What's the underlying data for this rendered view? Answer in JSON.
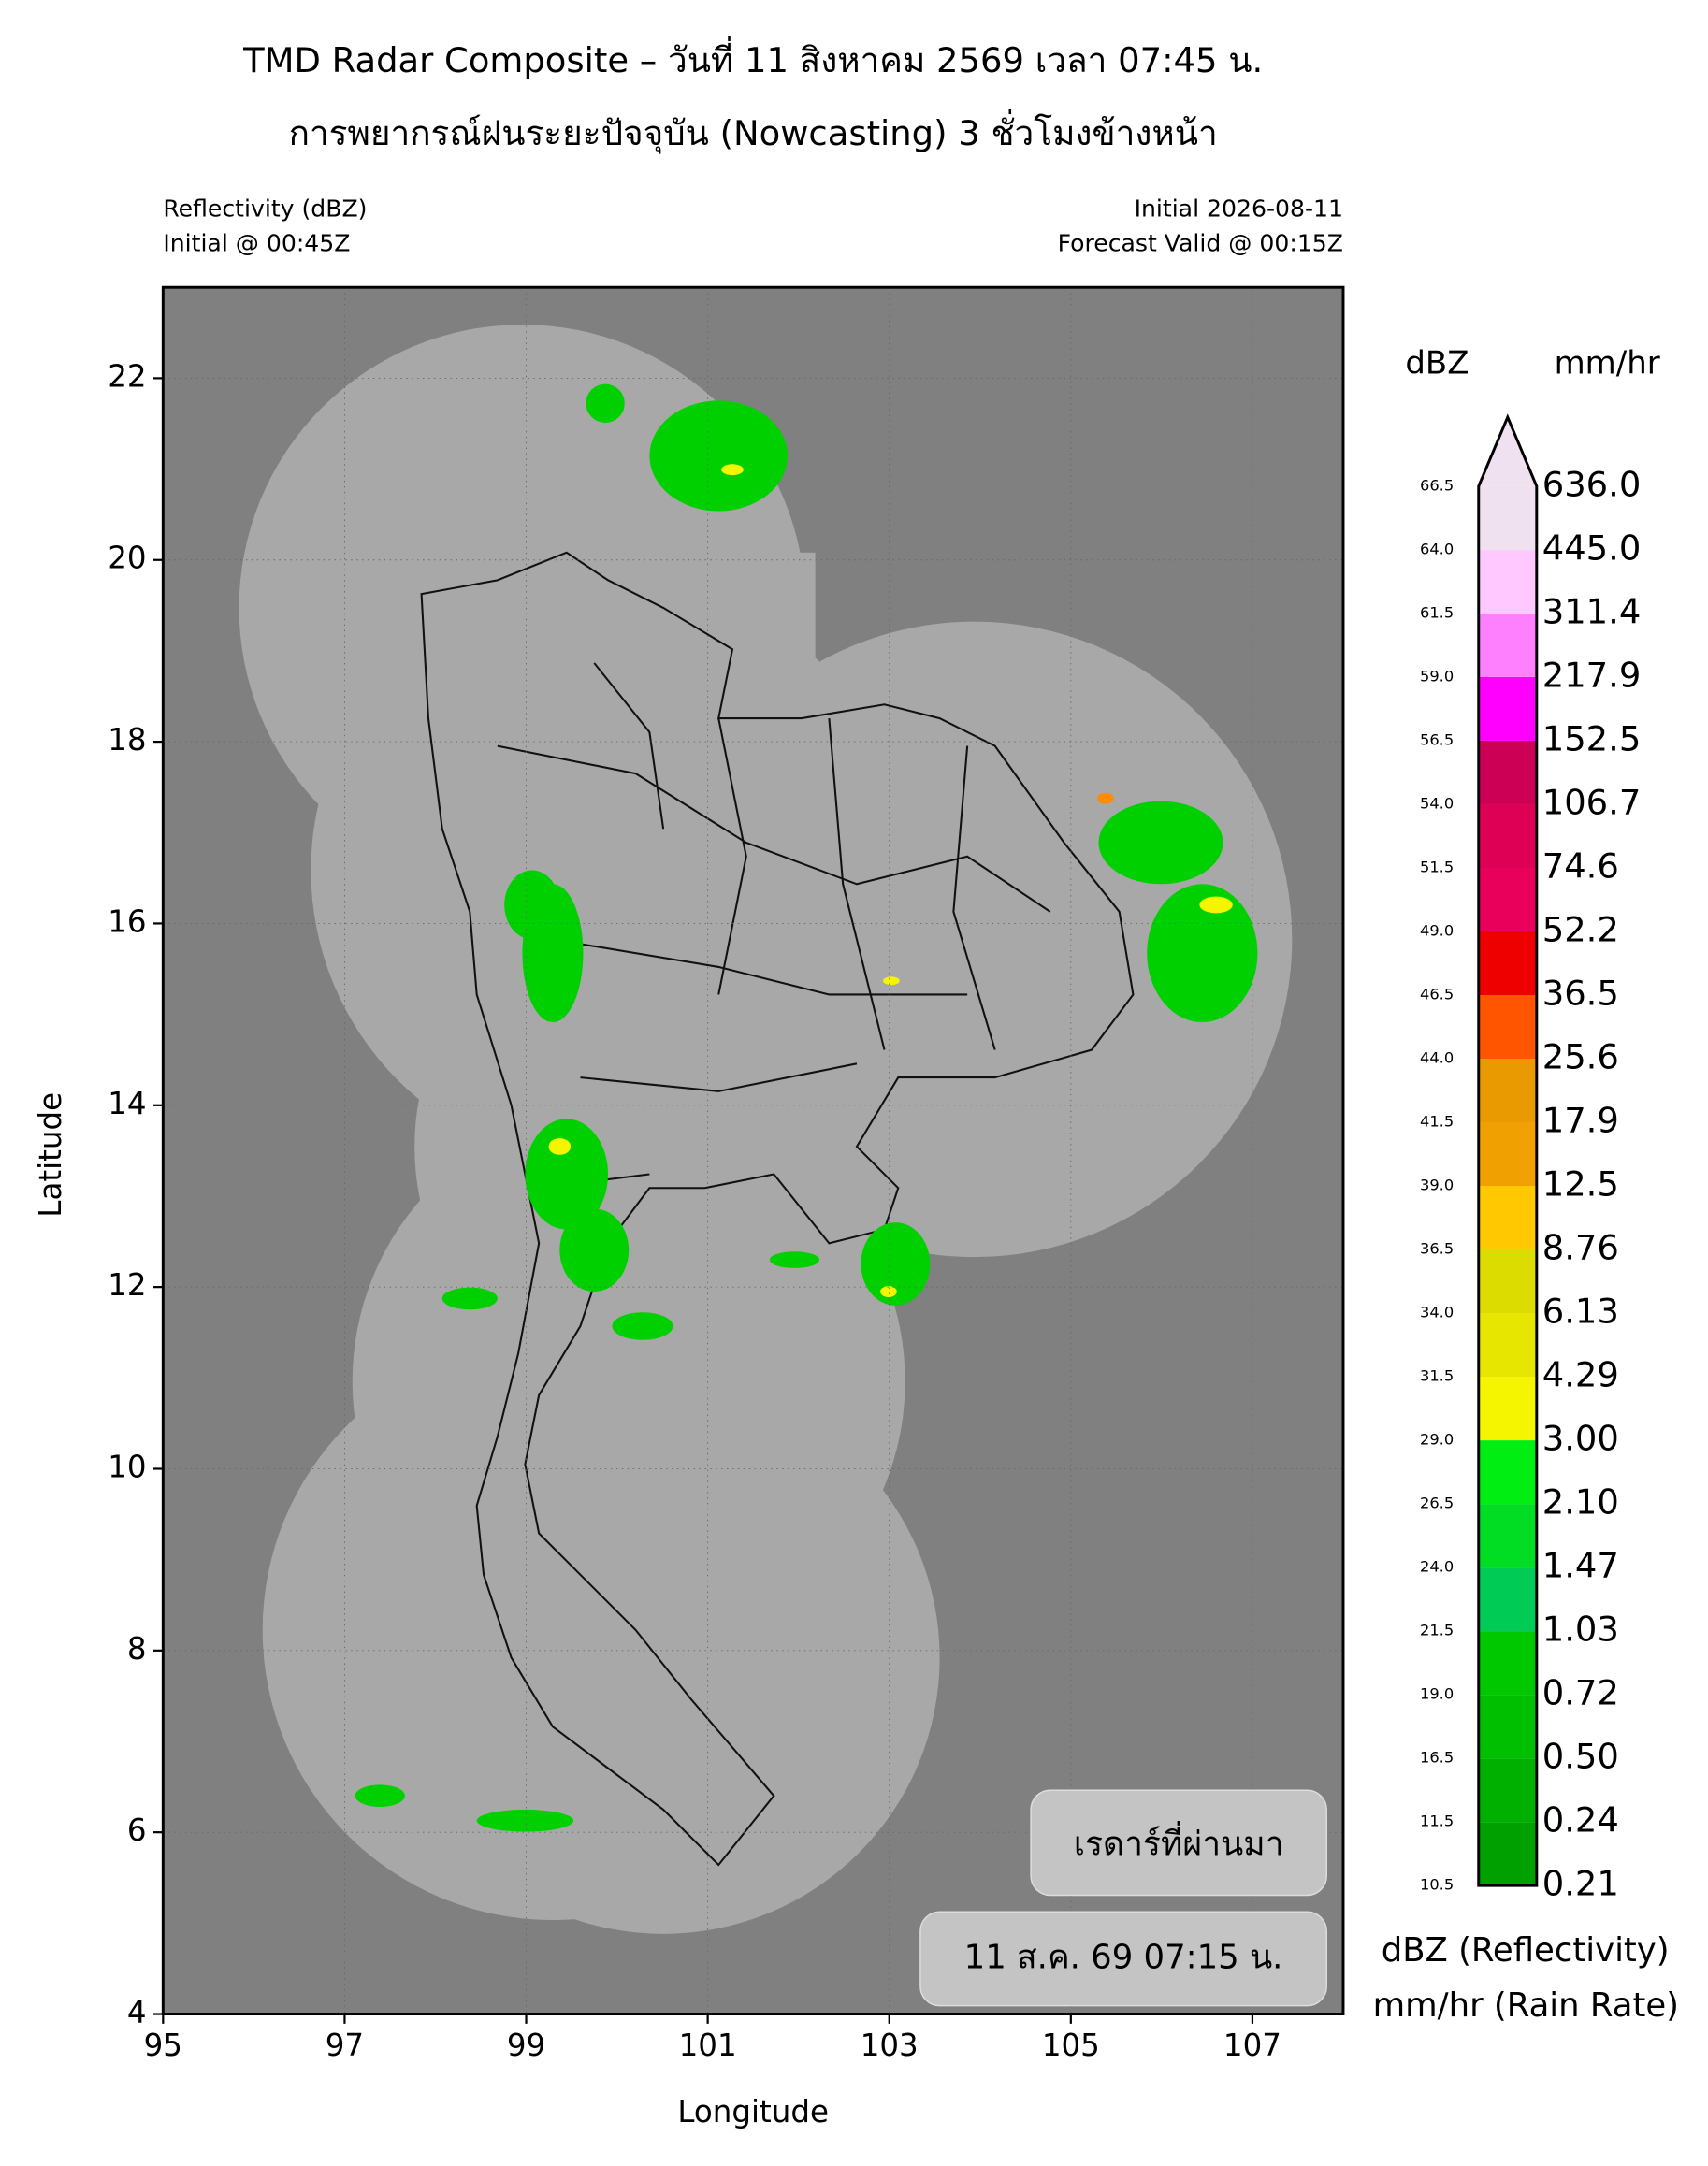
{
  "chart_data": {
    "type": "radar-map",
    "title": "TMD Radar Composite – วันที่ 11 สิงหาคม 2569 เวลา 07:45 น.",
    "subtitle": "การพยากรณ์ฝนระยะปัจจุบัน (Nowcasting) 3 ชั่วโมงข้างหน้า",
    "left_info": [
      "Reflectivity (dBZ)",
      "Initial @ 00:45Z"
    ],
    "right_info": [
      "Initial 2026-08-11",
      "Forecast Valid @ 00:15Z"
    ],
    "x_label": "Longitude",
    "y_label": "Latitude",
    "xlim": [
      95,
      108
    ],
    "ylim": [
      4,
      23
    ],
    "xticks": [
      95,
      97,
      99,
      101,
      103,
      105,
      107
    ],
    "yticks": [
      4,
      6,
      8,
      10,
      12,
      14,
      16,
      18,
      20,
      22
    ],
    "grid": true,
    "overlay_labels": [
      "เรดาร์ที่ผ่านมา",
      "11 ส.ค. 69 07:15 น."
    ],
    "colorbar": {
      "headers": [
        "dBZ",
        "mm/hr"
      ],
      "levels": [
        {
          "value": 10.5,
          "label": "10.5"
        },
        {
          "value": 11.5,
          "label": "11.5"
        },
        {
          "value": 16.5,
          "label": "16.5"
        },
        {
          "value": 19,
          "label": "19.0"
        },
        {
          "value": 21.5,
          "label": "21.5"
        },
        {
          "value": 24,
          "label": "24.0"
        },
        {
          "value": 26.5,
          "label": "26.5"
        },
        {
          "value": 29,
          "label": "29.0"
        },
        {
          "value": 31.5,
          "label": "31.5"
        },
        {
          "value": 34,
          "label": "34.0"
        },
        {
          "value": 36.5,
          "label": "36.5"
        },
        {
          "value": 39,
          "label": "39.0"
        },
        {
          "value": 41.5,
          "label": "41.5"
        },
        {
          "value": 44,
          "label": "44.0"
        },
        {
          "value": 46.5,
          "label": "46.5"
        },
        {
          "value": 49,
          "label": "49.0"
        },
        {
          "value": 51.5,
          "label": "51.5"
        },
        {
          "value": 54,
          "label": "54.0"
        },
        {
          "value": 56.5,
          "label": "56.5"
        },
        {
          "value": 59,
          "label": "59.0"
        },
        {
          "value": 61.5,
          "label": "61.5"
        },
        {
          "value": 64,
          "label": "64.0"
        },
        {
          "value": 66.5,
          "label": "66.5"
        }
      ],
      "rain_rates": [
        {
          "value": 0.21,
          "label": "0.21"
        },
        {
          "value": 0.24,
          "label": "0.24"
        },
        {
          "value": 0.5,
          "label": "0.50"
        },
        {
          "value": 0.72,
          "label": "0.72"
        },
        {
          "value": 1.03,
          "label": "1.03"
        },
        {
          "value": 1.47,
          "label": "1.47"
        },
        {
          "value": 2.1,
          "label": "2.10"
        },
        {
          "value": 3,
          "label": "3.00"
        },
        {
          "value": 4.29,
          "label": "4.29"
        },
        {
          "value": 6.13,
          "label": "6.13"
        },
        {
          "value": 8.76,
          "label": "8.76"
        },
        {
          "value": 12.5,
          "label": "12.5"
        },
        {
          "value": 17.9,
          "label": "17.9"
        },
        {
          "value": 25.6,
          "label": "25.6"
        },
        {
          "value": 36.5,
          "label": "36.5"
        },
        {
          "value": 52.2,
          "label": "52.2"
        },
        {
          "value": 74.6,
          "label": "74.6"
        },
        {
          "value": 106.7,
          "label": "106.7"
        },
        {
          "value": 152.5,
          "label": "152.5"
        },
        {
          "value": 217.9,
          "label": "217.9"
        },
        {
          "value": 311.4,
          "label": "311.4"
        },
        {
          "value": 445,
          "label": "445.0"
        },
        {
          "value": 636,
          "label": "636.0"
        }
      ],
      "colors": [
        "#00a000",
        "#00b000",
        "#00bf00",
        "#00c800",
        "#00cc55",
        "#00dd22",
        "#00ee11",
        "#f5f500",
        "#e6e600",
        "#dcdc00",
        "#ffc800",
        "#f0a000",
        "#e89a00",
        "#ff5500",
        "#ee0000",
        "#e8005a",
        "#dd0055",
        "#cc0055",
        "#ff00ff",
        "#ff80ff",
        "#ffc8ff",
        "#f0e1f0"
      ],
      "extend_color": "#f0e1f0",
      "footers": [
        "dBZ (Reflectivity)",
        "mm/hr (Rain Rate)"
      ]
    }
  }
}
